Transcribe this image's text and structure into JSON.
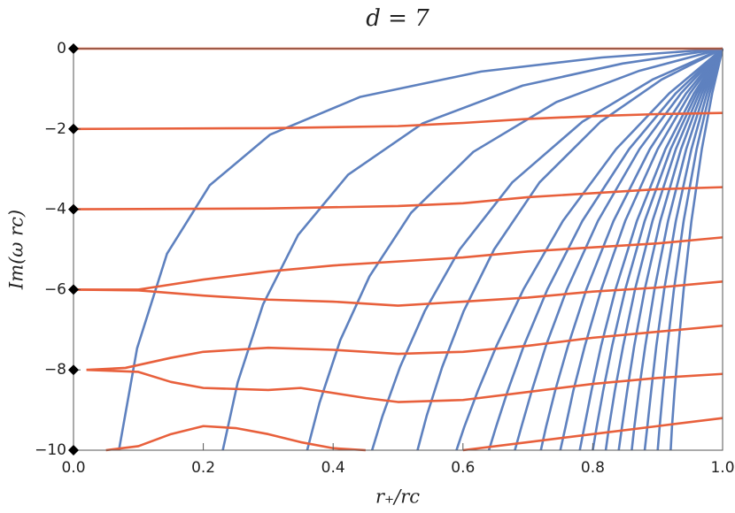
{
  "chart_data": {
    "type": "line",
    "title": "d = 7",
    "x_label": "r₊/rc",
    "y_label": "Im(ω rc)",
    "xlim": [
      0,
      1
    ],
    "ylim": [
      -10,
      0
    ],
    "xticks": [
      {
        "value": 0,
        "label": "0.0"
      },
      0.2,
      0.4,
      0.6,
      0.8,
      {
        "value": 1,
        "label": "1.0"
      }
    ],
    "yticks": [
      0,
      {
        "value": -2,
        "label": "−2"
      },
      {
        "value": -4,
        "label": "−4"
      },
      {
        "value": -6,
        "label": "−6"
      },
      {
        "value": -8,
        "label": "−8"
      },
      {
        "value": -10,
        "label": "−10"
      }
    ],
    "series": [
      {
        "color": "#5e81bf",
        "x": [
          0.07,
          0.098,
          0.144,
          0.21,
          0.303,
          0.442,
          0.628,
          0.814,
          1
        ],
        "values": [
          -10,
          -7.46,
          -5.11,
          -3.4,
          -2.14,
          -1.2,
          -0.57,
          -0.22,
          0
        ]
      },
      {
        "color": "#5e81bf",
        "x": [
          0.23,
          0.253,
          0.292,
          0.346,
          0.423,
          0.538,
          0.692,
          0.846,
          1
        ],
        "values": [
          -10,
          -8.31,
          -6.37,
          -4.64,
          -3.14,
          -1.86,
          -0.92,
          -0.37,
          0
        ]
      },
      {
        "color": "#5e81bf",
        "x": [
          0.36,
          0.379,
          0.411,
          0.456,
          0.52,
          0.616,
          0.744,
          0.872,
          1
        ],
        "values": [
          -10,
          -8.82,
          -7.26,
          -5.67,
          -4.09,
          -2.57,
          -1.33,
          -0.55,
          0
        ]
      },
      {
        "color": "#5e81bf",
        "x": [
          0.46,
          0.476,
          0.503,
          0.541,
          0.595,
          0.676,
          0.784,
          0.892,
          1
        ],
        "values": [
          -10,
          -9.15,
          -7.93,
          -6.54,
          -5,
          -3.33,
          -1.82,
          -0.77,
          0
        ]
      },
      {
        "color": "#5e81bf",
        "x": [
          0.53,
          0.544,
          0.568,
          0.601,
          0.648,
          0.718,
          0.812,
          0.906,
          1
        ],
        "values": [
          -10,
          -9.15,
          -7.93,
          -6.54,
          -5,
          -3.33,
          -1.82,
          -0.77,
          0
        ]
      },
      {
        "color": "#5e81bf",
        "x": [
          0.59,
          0.602,
          0.623,
          0.652,
          0.693,
          0.754,
          0.836,
          0.918,
          1
        ],
        "values": [
          -10,
          -9.42,
          -8.52,
          -7.39,
          -6,
          -4.29,
          -2.5,
          -1.11,
          0
        ]
      },
      {
        "color": "#5e81bf",
        "x": [
          0.64,
          0.651,
          0.669,
          0.694,
          0.73,
          0.784,
          0.856,
          0.928,
          1
        ],
        "values": [
          -10,
          -9.42,
          -8.52,
          -7.39,
          -6,
          -4.29,
          -2.5,
          -1.11,
          0
        ]
      },
      {
        "color": "#5e81bf",
        "x": [
          0.68,
          0.69,
          0.706,
          0.728,
          0.76,
          0.808,
          0.872,
          0.936,
          1
        ],
        "values": [
          -10,
          -9.42,
          -8.52,
          -7.39,
          -6,
          -4.29,
          -2.5,
          -1.11,
          0
        ]
      },
      {
        "color": "#5e81bf",
        "x": [
          0.72,
          0.728,
          0.742,
          0.762,
          0.79,
          0.832,
          0.888,
          0.944,
          1
        ],
        "values": [
          -10,
          -9.42,
          -8.52,
          -7.39,
          -6,
          -4.29,
          -2.5,
          -1.11,
          0
        ]
      },
      {
        "color": "#5e81bf",
        "x": [
          0.75,
          0.758,
          0.77,
          0.788,
          0.813,
          0.85,
          0.9,
          0.95,
          1
        ],
        "values": [
          -10,
          -9.42,
          -8.52,
          -7.39,
          -6,
          -4.29,
          -2.5,
          -1.11,
          0
        ]
      },
      {
        "color": "#5e81bf",
        "x": [
          0.78,
          0.787,
          0.798,
          0.813,
          0.835,
          0.868,
          0.912,
          0.956,
          1
        ],
        "values": [
          -10,
          -9.42,
          -8.52,
          -7.39,
          -6,
          -4.29,
          -2.5,
          -1.11,
          0
        ]
      },
      {
        "color": "#5e81bf",
        "x": [
          0.8,
          0.806,
          0.816,
          0.83,
          0.85,
          0.88,
          0.92,
          0.96,
          1
        ],
        "values": [
          -10,
          -9.42,
          -8.52,
          -7.39,
          -6,
          -4.29,
          -2.5,
          -1.11,
          0
        ]
      },
      {
        "color": "#5e81bf",
        "x": [
          0.82,
          0.825,
          0.834,
          0.847,
          0.865,
          0.892,
          0.928,
          0.964,
          1
        ],
        "values": [
          -10,
          -9.42,
          -8.52,
          -7.39,
          -6,
          -4.29,
          -2.5,
          -1.11,
          0
        ]
      },
      {
        "color": "#5e81bf",
        "x": [
          0.84,
          0.845,
          0.853,
          0.864,
          0.88,
          0.904,
          0.936,
          0.968,
          1
        ],
        "values": [
          -10,
          -9.42,
          -8.52,
          -7.39,
          -6,
          -4.29,
          -2.5,
          -1.11,
          0
        ]
      },
      {
        "color": "#5e81bf",
        "x": [
          0.86,
          0.864,
          0.871,
          0.881,
          0.895,
          0.916,
          0.944,
          0.972,
          1
        ],
        "values": [
          -10,
          -9.42,
          -8.52,
          -7.39,
          -6,
          -4.29,
          -2.5,
          -1.11,
          0
        ]
      },
      {
        "color": "#5e81bf",
        "x": [
          0.88,
          0.884,
          0.89,
          0.898,
          0.91,
          0.928,
          0.952,
          0.976,
          1
        ],
        "values": [
          -10,
          -9.42,
          -8.52,
          -7.39,
          -6,
          -4.29,
          -2.5,
          -1.11,
          0
        ]
      },
      {
        "color": "#5e81bf",
        "x": [
          0.9,
          0.903,
          0.908,
          0.915,
          0.925,
          0.94,
          0.96,
          0.98,
          1
        ],
        "values": [
          -10,
          -9.42,
          -8.52,
          -7.39,
          -6,
          -4.29,
          -2.5,
          -1.11,
          0
        ]
      },
      {
        "color": "#5e81bf",
        "x": [
          0.92,
          0.922,
          0.926,
          0.932,
          0.94,
          0.952,
          0.968,
          0.984,
          1
        ],
        "values": [
          -10,
          -9.42,
          -8.52,
          -7.39,
          -6,
          -4.29,
          -2.5,
          -1.11,
          0
        ]
      },
      {
        "color": "#e8603c",
        "x": [
          0,
          1
        ],
        "values": [
          0,
          0
        ]
      },
      {
        "color": "#e8603c",
        "x": [
          0,
          0.3,
          0.5,
          0.6,
          0.7,
          0.8,
          0.9,
          1
        ],
        "values": [
          -2,
          -1.98,
          -1.93,
          -1.85,
          -1.75,
          -1.68,
          -1.63,
          -1.6
        ]
      },
      {
        "color": "#e8603c",
        "x": [
          0,
          0.3,
          0.5,
          0.6,
          0.7,
          0.8,
          0.9,
          1
        ],
        "values": [
          -4,
          -3.98,
          -3.92,
          -3.85,
          -3.7,
          -3.6,
          -3.5,
          -3.45
        ]
      },
      {
        "color": "#e8603c",
        "x": [
          0,
          0.1,
          0.2,
          0.3,
          0.4,
          0.5,
          0.6,
          0.7,
          0.8,
          0.9,
          1
        ],
        "values": [
          -6,
          -6,
          -5.75,
          -5.55,
          -5.4,
          -5.3,
          -5.2,
          -5.05,
          -4.95,
          -4.85,
          -4.7
        ]
      },
      {
        "color": "#e8603c",
        "x": [
          0,
          0.1,
          0.2,
          0.3,
          0.4,
          0.5,
          0.6,
          0.7,
          0.8,
          0.9,
          1
        ],
        "values": [
          -6,
          -6.02,
          -6.15,
          -6.25,
          -6.3,
          -6.4,
          -6.3,
          -6.2,
          -6.05,
          -5.95,
          -5.8
        ]
      },
      {
        "color": "#e8603c",
        "x": [
          0.02,
          0.08,
          0.15,
          0.2,
          0.3,
          0.4,
          0.5,
          0.6,
          0.7,
          0.8,
          0.9,
          1
        ],
        "values": [
          -8,
          -7.95,
          -7.7,
          -7.55,
          -7.45,
          -7.5,
          -7.6,
          -7.55,
          -7.4,
          -7.2,
          -7.05,
          -6.9
        ]
      },
      {
        "color": "#e8603c",
        "x": [
          0.02,
          0.1,
          0.15,
          0.2,
          0.3,
          0.35,
          0.45,
          0.5,
          0.6,
          0.7,
          0.8,
          0.9,
          1
        ],
        "values": [
          -8,
          -8.05,
          -8.3,
          -8.45,
          -8.5,
          -8.45,
          -8.7,
          -8.8,
          -8.75,
          -8.55,
          -8.35,
          -8.2,
          -8.1
        ]
      },
      {
        "color": "#e8603c",
        "x": [
          0.05,
          0.1,
          0.15,
          0.2,
          0.25,
          0.3,
          0.35,
          0.4,
          0.45
        ],
        "values": [
          -10,
          -9.9,
          -9.6,
          -9.4,
          -9.45,
          -9.6,
          -9.8,
          -9.95,
          -10
        ]
      },
      {
        "color": "#e8603c",
        "x": [
          0.6,
          0.7,
          0.8,
          0.9,
          1
        ],
        "values": [
          -10,
          -9.8,
          -9.6,
          -9.4,
          -9.2
        ]
      },
      {
        "color": "#000000",
        "marker": "diamond",
        "line": false,
        "x": [
          0,
          0,
          0,
          0,
          0,
          0
        ],
        "values": [
          0,
          -2,
          -4,
          -6,
          -8,
          -10
        ]
      }
    ]
  }
}
